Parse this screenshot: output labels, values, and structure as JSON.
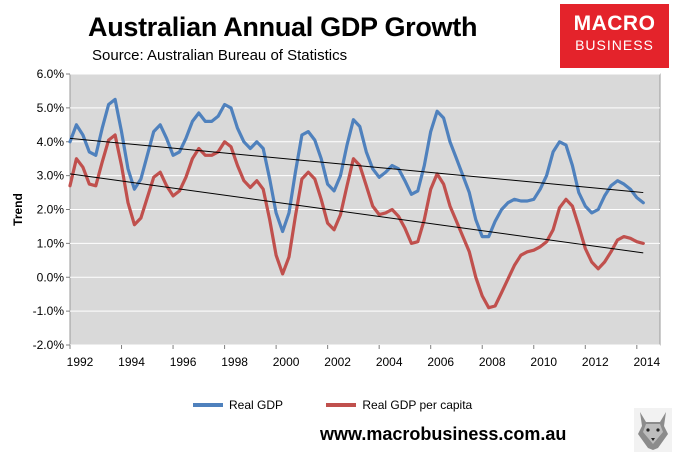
{
  "header": {
    "title": "Australian Annual GDP Growth",
    "subtitle": "Source: Australian Bureau of Statistics"
  },
  "logo": {
    "line1": "MACRO",
    "line2": "BUSINESS",
    "color": "#e4232b"
  },
  "footer": {
    "website": "www.macrobusiness.com.au",
    "mascot_icon": "wolf-icon"
  },
  "chart_data": {
    "type": "line",
    "title": "Australian Annual GDP Growth",
    "xlabel": "",
    "ylabel": "Trend",
    "xlim": [
      1992,
      2014.9
    ],
    "ylim": [
      -2.0,
      6.0
    ],
    "grid": true,
    "plot_background": "#d9d9d9",
    "x_ticks": [
      1992,
      1994,
      1996,
      1998,
      2000,
      2002,
      2004,
      2006,
      2008,
      2010,
      2012,
      2014
    ],
    "x_tick_labels": [
      "1992",
      "1994",
      "1996",
      "1998",
      "2000",
      "2002",
      "2004",
      "2006",
      "2008",
      "2010",
      "2012",
      "2014"
    ],
    "y_ticks": [
      -2,
      -1,
      0,
      1,
      2,
      3,
      4,
      5,
      6
    ],
    "y_tick_labels": [
      "-2.0%",
      "-1.0%",
      "0.0%",
      "1.0%",
      "2.0%",
      "3.0%",
      "4.0%",
      "5.0%",
      "6.0%"
    ],
    "legend_position": "bottom",
    "series": [
      {
        "name": "Real GDP",
        "color": "#4f81bd",
        "points": [
          [
            1992.0,
            4.0
          ],
          [
            1992.25,
            4.5
          ],
          [
            1992.5,
            4.2
          ],
          [
            1992.75,
            3.7
          ],
          [
            1993.0,
            3.6
          ],
          [
            1993.25,
            4.4
          ],
          [
            1993.5,
            5.1
          ],
          [
            1993.75,
            5.25
          ],
          [
            1994.0,
            4.3
          ],
          [
            1994.25,
            3.2
          ],
          [
            1994.5,
            2.6
          ],
          [
            1994.75,
            2.9
          ],
          [
            1995.0,
            3.6
          ],
          [
            1995.25,
            4.3
          ],
          [
            1995.5,
            4.5
          ],
          [
            1995.75,
            4.1
          ],
          [
            1996.0,
            3.6
          ],
          [
            1996.25,
            3.7
          ],
          [
            1996.5,
            4.1
          ],
          [
            1996.75,
            4.6
          ],
          [
            1997.0,
            4.85
          ],
          [
            1997.25,
            4.6
          ],
          [
            1997.5,
            4.6
          ],
          [
            1997.75,
            4.75
          ],
          [
            1998.0,
            5.1
          ],
          [
            1998.25,
            5.0
          ],
          [
            1998.5,
            4.4
          ],
          [
            1998.75,
            4.0
          ],
          [
            1999.0,
            3.8
          ],
          [
            1999.25,
            4.0
          ],
          [
            1999.5,
            3.8
          ],
          [
            1999.75,
            2.9
          ],
          [
            2000.0,
            1.9
          ],
          [
            2000.25,
            1.35
          ],
          [
            2000.5,
            1.9
          ],
          [
            2000.75,
            3.1
          ],
          [
            2001.0,
            4.2
          ],
          [
            2001.25,
            4.3
          ],
          [
            2001.5,
            4.05
          ],
          [
            2001.75,
            3.5
          ],
          [
            2002.0,
            2.75
          ],
          [
            2002.25,
            2.55
          ],
          [
            2002.5,
            3.0
          ],
          [
            2002.75,
            3.9
          ],
          [
            2003.0,
            4.65
          ],
          [
            2003.25,
            4.45
          ],
          [
            2003.5,
            3.7
          ],
          [
            2003.75,
            3.2
          ],
          [
            2004.0,
            2.95
          ],
          [
            2004.25,
            3.1
          ],
          [
            2004.5,
            3.3
          ],
          [
            2004.75,
            3.2
          ],
          [
            2005.0,
            2.85
          ],
          [
            2005.25,
            2.45
          ],
          [
            2005.5,
            2.55
          ],
          [
            2005.75,
            3.3
          ],
          [
            2006.0,
            4.3
          ],
          [
            2006.25,
            4.9
          ],
          [
            2006.5,
            4.7
          ],
          [
            2006.75,
            4.0
          ],
          [
            2007.0,
            3.5
          ],
          [
            2007.25,
            3.0
          ],
          [
            2007.5,
            2.5
          ],
          [
            2007.75,
            1.7
          ],
          [
            2008.0,
            1.2
          ],
          [
            2008.25,
            1.2
          ],
          [
            2008.5,
            1.65
          ],
          [
            2008.75,
            2.0
          ],
          [
            2009.0,
            2.2
          ],
          [
            2009.25,
            2.3
          ],
          [
            2009.5,
            2.25
          ],
          [
            2009.75,
            2.25
          ],
          [
            2010.0,
            2.3
          ],
          [
            2010.25,
            2.6
          ],
          [
            2010.5,
            3.0
          ],
          [
            2010.75,
            3.7
          ],
          [
            2011.0,
            4.0
          ],
          [
            2011.25,
            3.9
          ],
          [
            2011.5,
            3.3
          ],
          [
            2011.75,
            2.5
          ],
          [
            2012.0,
            2.1
          ],
          [
            2012.25,
            1.9
          ],
          [
            2012.5,
            2.0
          ],
          [
            2012.75,
            2.4
          ],
          [
            2013.0,
            2.7
          ],
          [
            2013.25,
            2.85
          ],
          [
            2013.5,
            2.75
          ],
          [
            2013.75,
            2.6
          ],
          [
            2014.0,
            2.35
          ],
          [
            2014.25,
            2.2
          ]
        ]
      },
      {
        "name": "Real GDP per capita",
        "color": "#c0504d",
        "points": [
          [
            1992.0,
            2.7
          ],
          [
            1992.25,
            3.5
          ],
          [
            1992.5,
            3.25
          ],
          [
            1992.75,
            2.75
          ],
          [
            1993.0,
            2.7
          ],
          [
            1993.25,
            3.4
          ],
          [
            1993.5,
            4.05
          ],
          [
            1993.75,
            4.2
          ],
          [
            1994.0,
            3.3
          ],
          [
            1994.25,
            2.2
          ],
          [
            1994.5,
            1.55
          ],
          [
            1994.75,
            1.75
          ],
          [
            1995.0,
            2.35
          ],
          [
            1995.25,
            2.95
          ],
          [
            1995.5,
            3.1
          ],
          [
            1995.75,
            2.7
          ],
          [
            1996.0,
            2.4
          ],
          [
            1996.25,
            2.55
          ],
          [
            1996.5,
            2.95
          ],
          [
            1996.75,
            3.5
          ],
          [
            1997.0,
            3.8
          ],
          [
            1997.25,
            3.6
          ],
          [
            1997.5,
            3.6
          ],
          [
            1997.75,
            3.7
          ],
          [
            1998.0,
            4.0
          ],
          [
            1998.25,
            3.85
          ],
          [
            1998.5,
            3.3
          ],
          [
            1998.75,
            2.85
          ],
          [
            1999.0,
            2.65
          ],
          [
            1999.25,
            2.85
          ],
          [
            1999.5,
            2.6
          ],
          [
            1999.75,
            1.7
          ],
          [
            2000.0,
            0.65
          ],
          [
            2000.25,
            0.1
          ],
          [
            2000.5,
            0.6
          ],
          [
            2000.75,
            1.8
          ],
          [
            2001.0,
            2.9
          ],
          [
            2001.25,
            3.1
          ],
          [
            2001.5,
            2.9
          ],
          [
            2001.75,
            2.3
          ],
          [
            2002.0,
            1.6
          ],
          [
            2002.25,
            1.4
          ],
          [
            2002.5,
            1.85
          ],
          [
            2002.75,
            2.7
          ],
          [
            2003.0,
            3.5
          ],
          [
            2003.25,
            3.3
          ],
          [
            2003.5,
            2.7
          ],
          [
            2003.75,
            2.1
          ],
          [
            2004.0,
            1.85
          ],
          [
            2004.25,
            1.9
          ],
          [
            2004.5,
            2.0
          ],
          [
            2004.75,
            1.8
          ],
          [
            2005.0,
            1.45
          ],
          [
            2005.25,
            1.0
          ],
          [
            2005.5,
            1.05
          ],
          [
            2005.75,
            1.7
          ],
          [
            2006.0,
            2.6
          ],
          [
            2006.25,
            3.05
          ],
          [
            2006.5,
            2.75
          ],
          [
            2006.75,
            2.1
          ],
          [
            2007.0,
            1.65
          ],
          [
            2007.25,
            1.2
          ],
          [
            2007.5,
            0.75
          ],
          [
            2007.75,
            0.0
          ],
          [
            2008.0,
            -0.55
          ],
          [
            2008.25,
            -0.9
          ],
          [
            2008.5,
            -0.85
          ],
          [
            2008.75,
            -0.45
          ],
          [
            2009.0,
            -0.05
          ],
          [
            2009.25,
            0.35
          ],
          [
            2009.5,
            0.65
          ],
          [
            2009.75,
            0.75
          ],
          [
            2010.0,
            0.8
          ],
          [
            2010.25,
            0.9
          ],
          [
            2010.5,
            1.05
          ],
          [
            2010.75,
            1.4
          ],
          [
            2011.0,
            2.05
          ],
          [
            2011.25,
            2.3
          ],
          [
            2011.5,
            2.1
          ],
          [
            2011.75,
            1.5
          ],
          [
            2012.0,
            0.85
          ],
          [
            2012.25,
            0.45
          ],
          [
            2012.5,
            0.25
          ],
          [
            2012.75,
            0.45
          ],
          [
            2013.0,
            0.75
          ],
          [
            2013.25,
            1.1
          ],
          [
            2013.5,
            1.2
          ],
          [
            2013.75,
            1.15
          ],
          [
            2014.0,
            1.05
          ],
          [
            2014.25,
            1.0
          ]
        ]
      }
    ],
    "trend_lines": [
      {
        "name": "Real GDP trend",
        "color": "#000000",
        "from": [
          1992.0,
          4.1
        ],
        "to": [
          2014.25,
          2.5
        ]
      },
      {
        "name": "Real GDP per capita trend",
        "color": "#000000",
        "from": [
          1992.0,
          3.05
        ],
        "to": [
          2014.25,
          0.72
        ]
      }
    ]
  }
}
